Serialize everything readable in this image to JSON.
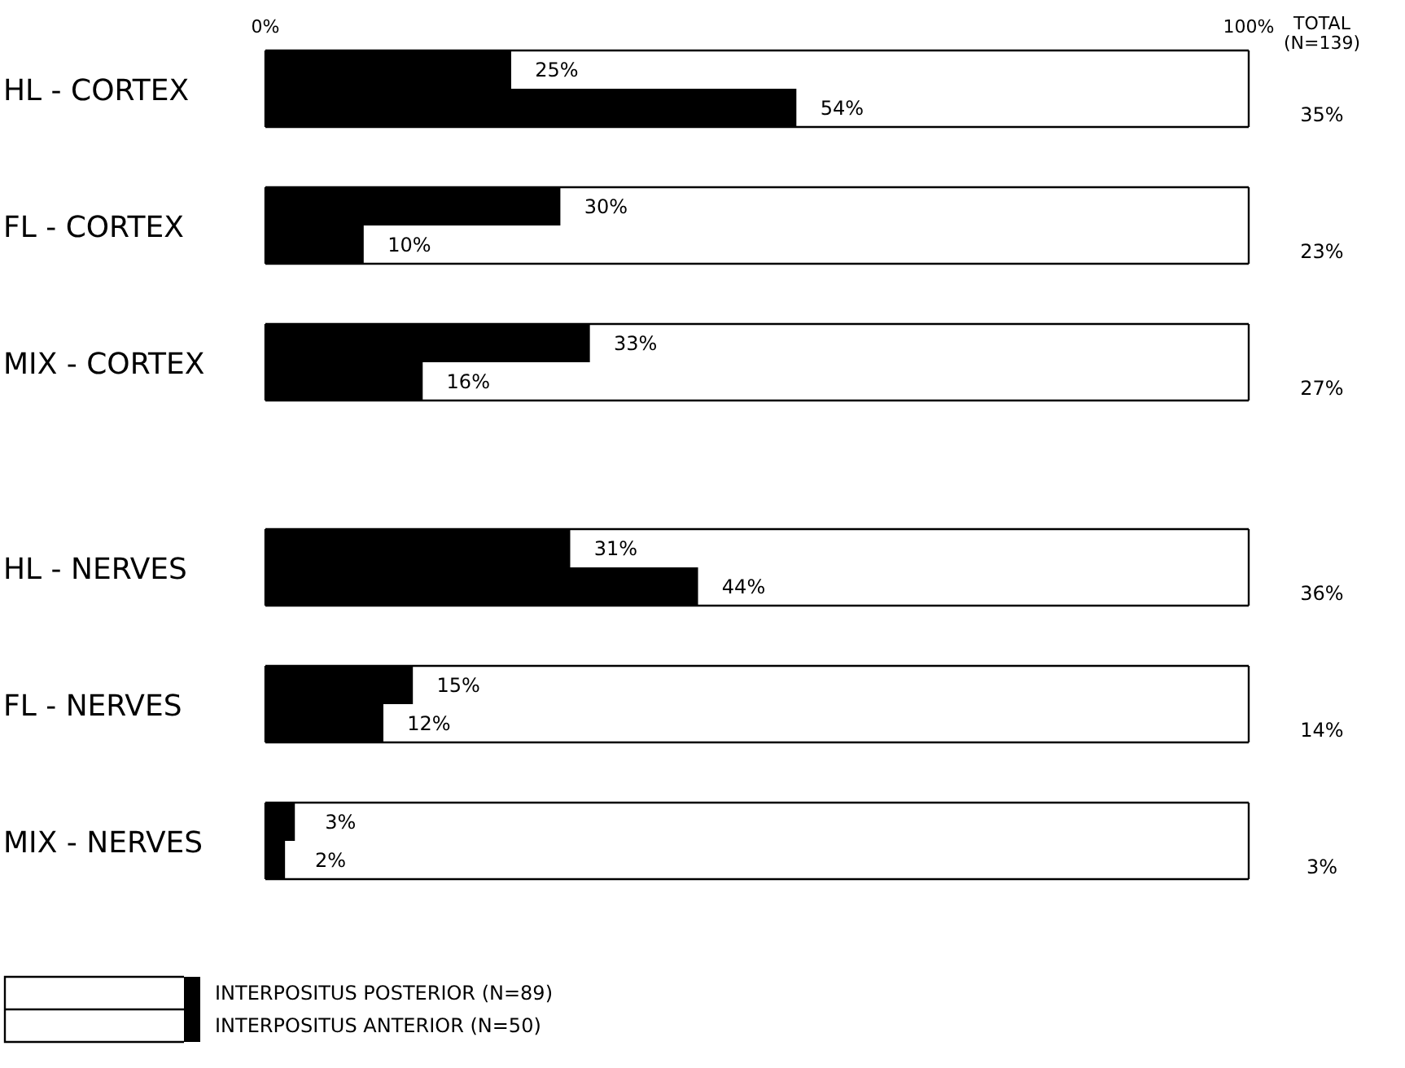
{
  "chart_data": {
    "type": "bar",
    "orientation": "horizontal",
    "stacked": false,
    "categories": [
      "HL - CORTEX",
      "FL - CORTEX",
      "MIX - CORTEX",
      "HL - NERVES",
      "FL - NERVES",
      "MIX - NERVES"
    ],
    "series": [
      {
        "name": "INTERPOSITUS POSTERIOR (N=89)",
        "color": "#000000",
        "values": [
          25,
          30,
          33,
          31,
          15,
          3
        ],
        "value_labels": [
          "25%",
          "30%",
          "33%",
          "31%",
          "15%",
          "3%"
        ]
      },
      {
        "name": "INTERPOSITUS ANTERIOR (N=50)",
        "color": "#000000",
        "values": [
          54,
          10,
          16,
          44,
          12,
          2
        ],
        "value_labels": [
          "54%",
          "10%",
          "16%",
          "44%",
          "12%",
          "2%"
        ]
      }
    ],
    "xlim": [
      0,
      100
    ],
    "xticks": [
      {
        "value": 0,
        "label": "0%"
      },
      {
        "value": 100,
        "label": "100%"
      }
    ],
    "legend": "bottom left",
    "annotations": [
      "TOTAL (N=139)",
      "35%",
      "23%",
      "27%",
      "36%",
      "14%",
      "3%"
    ]
  }
}
